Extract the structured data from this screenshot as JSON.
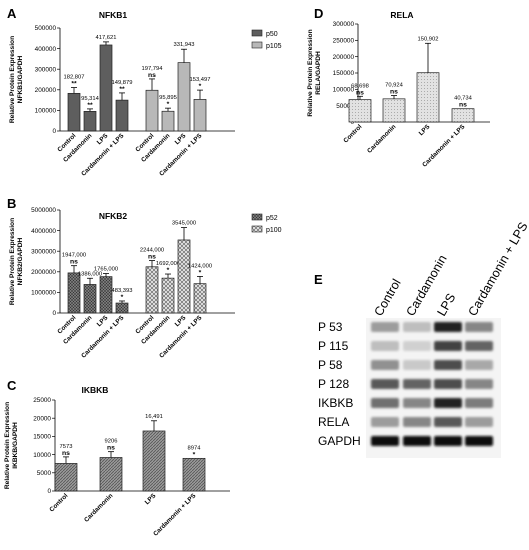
{
  "chart_data": [
    {
      "panel": "A",
      "type": "bar",
      "title": "NFKB1",
      "ylabel": "Relative Protein Expression NFKB1/GAPDH",
      "ylim": [
        0,
        500000
      ],
      "yticks": [
        "0",
        "100000",
        "200000",
        "300000",
        "400000",
        "500000"
      ],
      "legend": [
        {
          "name": "p50",
          "color": "#5a5a5a"
        },
        {
          "name": "p105",
          "color": "#b4b4b4"
        }
      ],
      "legend_position": "right",
      "groups": [
        {
          "series": "p50",
          "color": "#5a5a5a",
          "categories": [
            "Control",
            "Cardamonin",
            "LPS",
            "Cardamonin + LPS"
          ],
          "values": [
            182807,
            95314,
            417621,
            149879
          ],
          "errors": [
            28000,
            12000,
            15000,
            35000
          ],
          "value_labels": [
            "182,807",
            "95,314",
            "417,621",
            "149,879"
          ],
          "significance": [
            "**",
            "**",
            "",
            "**"
          ]
        },
        {
          "series": "p105",
          "color": "#b4b4b4",
          "categories": [
            "Control",
            "Cardamonin",
            "LPS",
            "Cardamonin + LPS"
          ],
          "values": [
            197794,
            95895,
            331943,
            153497
          ],
          "errors": [
            55000,
            15000,
            65000,
            45000
          ],
          "value_labels": [
            "197,794",
            "95,895",
            "331,943",
            "153,497"
          ],
          "significance": [
            "ns",
            "*",
            "",
            "*"
          ]
        }
      ]
    },
    {
      "panel": "B",
      "type": "bar",
      "title": "NFKB2",
      "ylabel": "Relative Protein Expression NFKB2/GAPDH",
      "ylim": [
        0,
        5000000
      ],
      "yticks": [
        "0",
        "1000000",
        "2000000",
        "3000000",
        "4000000",
        "5000000"
      ],
      "legend": [
        {
          "name": "p52",
          "color": "#6a6a6a"
        },
        {
          "name": "p100",
          "color": "#d8d8d8"
        }
      ],
      "legend_position": "right",
      "groups": [
        {
          "series": "p52",
          "color": "#6a6a6a",
          "categories": [
            "Control",
            "Cardamonin",
            "LPS",
            "Cardamonin + LPS"
          ],
          "values": [
            1947000,
            1386000,
            1765000,
            483393
          ],
          "errors": [
            350000,
            300000,
            150000,
            100000
          ],
          "value_labels": [
            "1947,000",
            "1386,000",
            "1765,000",
            "483,393"
          ],
          "significance": [
            "ns",
            "",
            "",
            "*"
          ]
        },
        {
          "series": "p100",
          "color": "#d8d8d8",
          "categories": [
            "Control",
            "Cardamonin",
            "LPS",
            "Cardamonin + LPS"
          ],
          "values": [
            2244000,
            1692000,
            3545000,
            1424000
          ],
          "errors": [
            300000,
            200000,
            600000,
            350000
          ],
          "value_labels": [
            "2244,000",
            "1692,000",
            "3545,000",
            "1424,000"
          ],
          "significance": [
            "ns",
            "*",
            "",
            "*"
          ]
        }
      ]
    },
    {
      "panel": "C",
      "type": "bar",
      "title": "IKBKB",
      "ylabel": "Relative Protein Expression IKBKB/GAPDH",
      "ylim": [
        0,
        25000
      ],
      "yticks": [
        "0",
        "5000",
        "10000",
        "15000",
        "20000",
        "25000"
      ],
      "categories": [
        "Control",
        "Cardamonin",
        "LPS",
        "Cardamonin + LPS"
      ],
      "values": [
        7573,
        9206,
        16491,
        8974
      ],
      "errors": [
        1800,
        1600,
        2800,
        0
      ],
      "value_labels": [
        "7573",
        "9206",
        "16,491",
        "8974"
      ],
      "significance": [
        "ns",
        "ns",
        "",
        "*"
      ],
      "color": "#8c8c8c"
    },
    {
      "panel": "D",
      "type": "bar",
      "title": "RELA",
      "ylabel": "Relative Protein Expression RELA/GAPDH",
      "ylim": [
        0,
        300000
      ],
      "yticks": [
        "0",
        "50000",
        "100000",
        "150000",
        "200000",
        "250000",
        "300000"
      ],
      "categories": [
        "Control",
        "Cardamonin",
        "LPS",
        "Cardamonin + LPS"
      ],
      "values": [
        68698,
        70924,
        150902,
        40734
      ],
      "errors": [
        10000,
        10000,
        90000,
        0
      ],
      "value_labels": [
        "68,698",
        "70,924",
        "150,902",
        "40,734"
      ],
      "significance": [
        "ns",
        "ns",
        "",
        "ns"
      ],
      "color": "#dcdcdc"
    }
  ],
  "panels": {
    "A": "A",
    "B": "B",
    "C": "C",
    "D": "D",
    "E": "E"
  },
  "blot": {
    "lanes": [
      "Control",
      "Cardamonin",
      "LPS",
      "Cardamonin + LPS"
    ],
    "rows": [
      {
        "label": "P 53",
        "intensity": [
          0.35,
          0.2,
          0.9,
          0.45
        ]
      },
      {
        "label": "P 115",
        "intensity": [
          0.2,
          0.12,
          0.75,
          0.6
        ]
      },
      {
        "label": "P 58",
        "intensity": [
          0.4,
          0.15,
          0.7,
          0.3
        ]
      },
      {
        "label": "P 128",
        "intensity": [
          0.65,
          0.6,
          0.7,
          0.45
        ]
      },
      {
        "label": "IKBKB",
        "intensity": [
          0.55,
          0.45,
          0.9,
          0.5
        ]
      },
      {
        "label": "RELA",
        "intensity": [
          0.35,
          0.45,
          0.65,
          0.35
        ]
      },
      {
        "label": "GAPDH",
        "intensity": [
          0.98,
          0.98,
          0.98,
          0.98
        ]
      }
    ]
  }
}
